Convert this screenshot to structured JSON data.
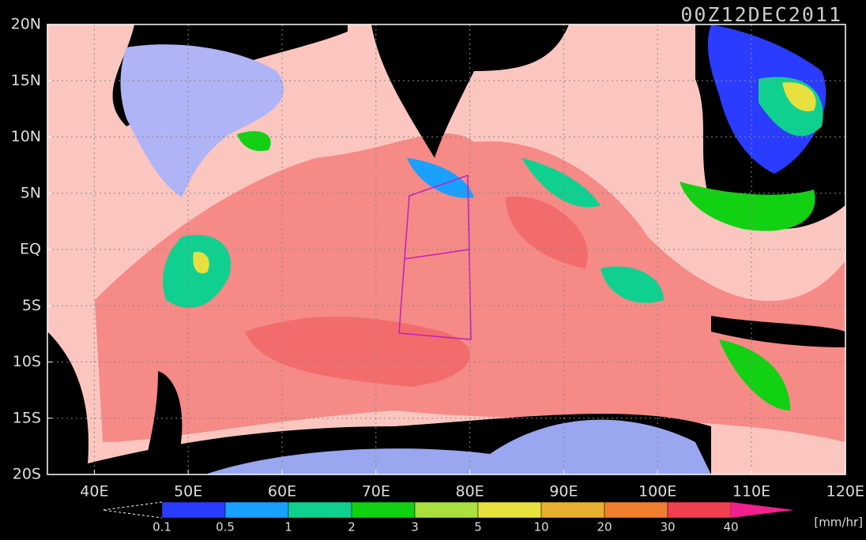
{
  "title": "00Z12DEC2011",
  "lat_labels": [
    "20N",
    "15N",
    "10N",
    "5N",
    "EQ",
    "5S",
    "10S",
    "15S",
    "20S"
  ],
  "lon_labels": [
    "40E",
    "50E",
    "60E",
    "70E",
    "80E",
    "90E",
    "100E",
    "110E",
    "120E"
  ],
  "colorbar": {
    "labels": [
      "0.1",
      "0.5",
      "1",
      "2",
      "3",
      "5",
      "10",
      "20",
      "30",
      "40"
    ],
    "colors": [
      "#2a3cff",
      "#1aa0ff",
      "#10d090",
      "#12d012",
      "#a8e040",
      "#e8e040",
      "#e8b030",
      "#f08030",
      "#f04050"
    ],
    "over_color": "#f0208c",
    "unit": "[mm/hr]"
  }
}
